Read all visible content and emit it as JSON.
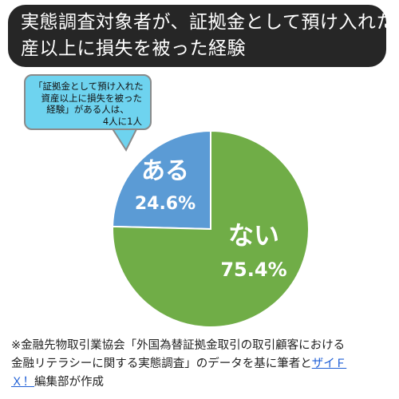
{
  "title": {
    "line1": "実態調査対象者が、証拠金として預け入れた資",
    "line2": "産以上に損失を被った経験"
  },
  "callout": {
    "line1": "「証拠金として預け入れた",
    "line2": "資産以上に損失を被った",
    "line3": "経験」がある人は、",
    "line4": "4人に1人"
  },
  "chart_data": {
    "type": "pie",
    "slices": [
      {
        "label": "ある",
        "percent_label": "24.6%",
        "value": 24.6,
        "color": "#5b9bd5"
      },
      {
        "label": "ない",
        "percent_label": "75.4%",
        "value": 75.4,
        "color": "#70ad47"
      }
    ]
  },
  "footnote": {
    "line1": "※金融先物取引業協会「外国為替証拠金取引の取引顧客における",
    "line2": "金融リテラシーに関する実態調査」のデータを基に筆者と",
    "link": "ザイＦ",
    "line3a": "Ｘ！",
    "line3b": "編集部が作成"
  },
  "colors": {
    "title_bg": "#262626",
    "callout_bg": "#6ed3ef",
    "link": "#1f5fd6"
  }
}
